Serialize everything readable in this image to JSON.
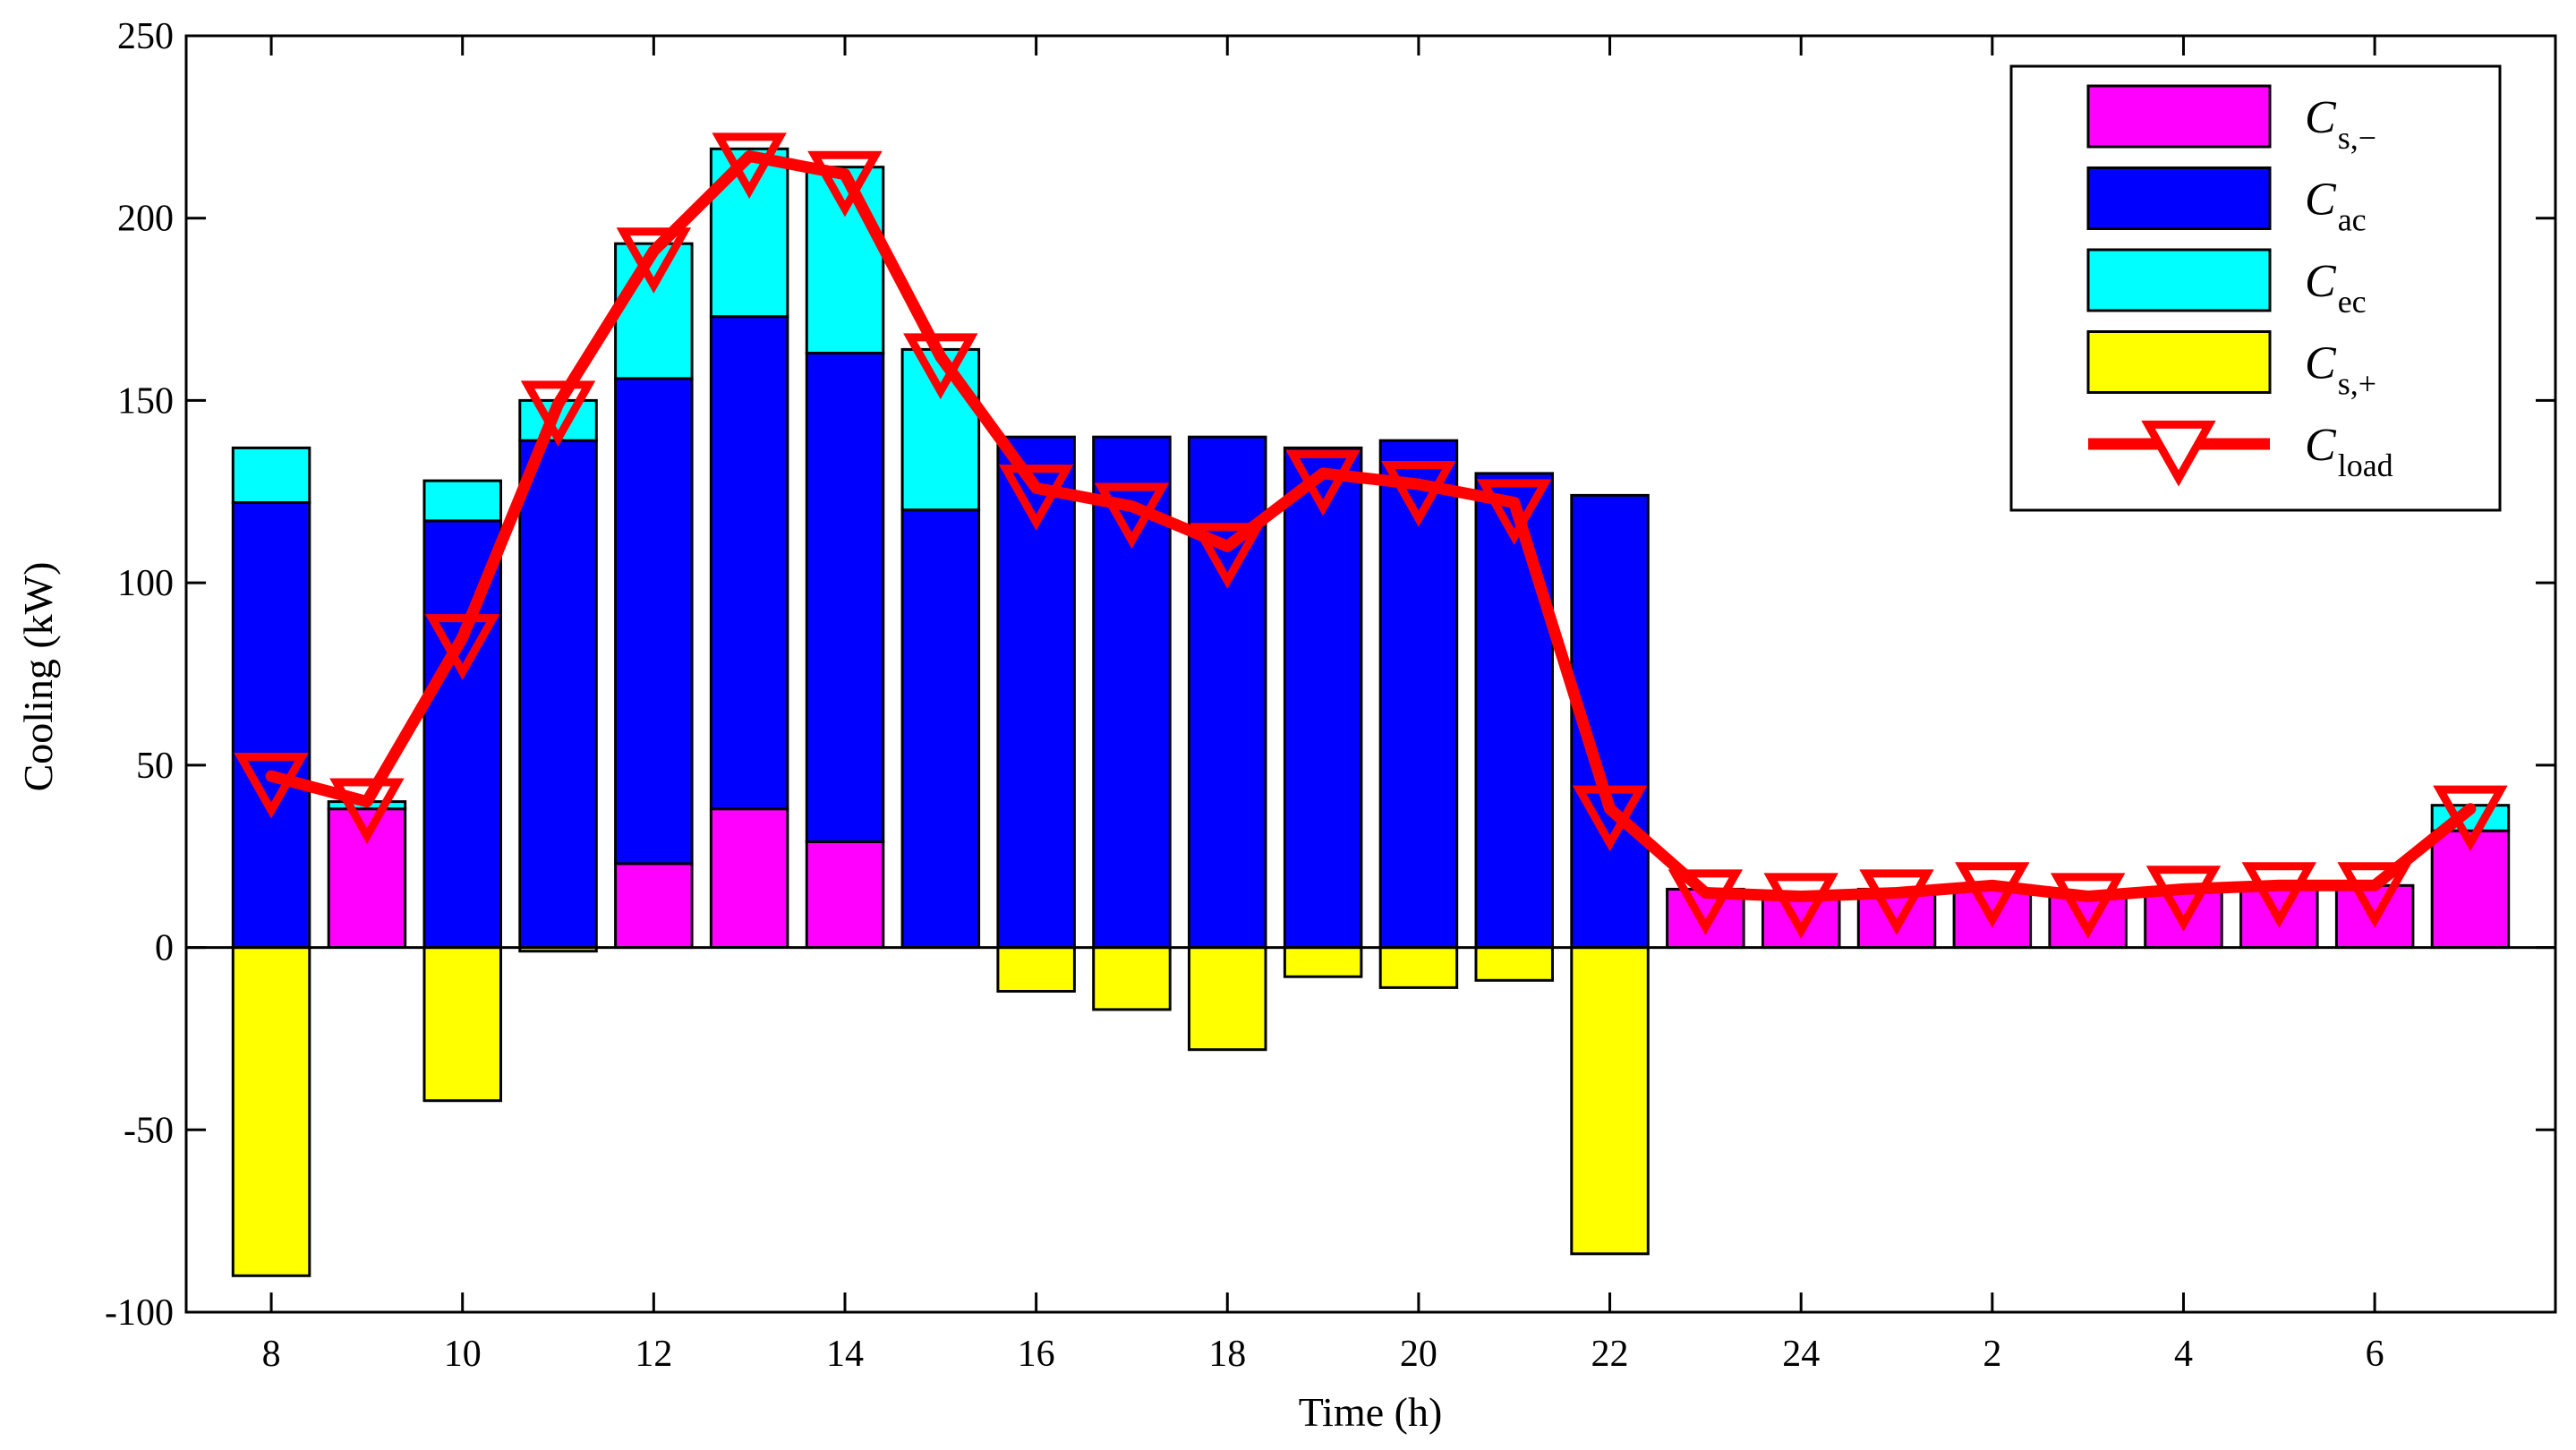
{
  "chart_data": {
    "type": "bar",
    "stacked": true,
    "title": "",
    "xlabel": "Time (h)",
    "ylabel": "Cooling (kW)",
    "ylim": [
      -100,
      250
    ],
    "yticks": [
      -100,
      -50,
      0,
      50,
      100,
      150,
      200,
      250
    ],
    "ytick_labels": [
      "-100",
      "-50",
      "0",
      "50",
      "100",
      "150",
      "200",
      "250"
    ],
    "categories": [
      "8",
      "9",
      "10",
      "11",
      "12",
      "13",
      "14",
      "15",
      "16",
      "17",
      "18",
      "19",
      "20",
      "21",
      "22",
      "23",
      "24",
      "1",
      "2",
      "3",
      "4",
      "5",
      "6",
      "7"
    ],
    "xtick_labels": [
      {
        "index": 0,
        "label": "8"
      },
      {
        "index": 2,
        "label": "10"
      },
      {
        "index": 4,
        "label": "12"
      },
      {
        "index": 6,
        "label": "14"
      },
      {
        "index": 8,
        "label": "16"
      },
      {
        "index": 10,
        "label": "18"
      },
      {
        "index": 12,
        "label": "20"
      },
      {
        "index": 14,
        "label": "22"
      },
      {
        "index": 16,
        "label": "24"
      },
      {
        "index": 18,
        "label": "2"
      },
      {
        "index": 20,
        "label": "4"
      },
      {
        "index": 22,
        "label": "6"
      }
    ],
    "series": [
      {
        "name": "s,−",
        "legend_main": "C",
        "legend_sub": "s,−",
        "kind": "bar",
        "color": "#ff00ff",
        "values": [
          0,
          38,
          0,
          0,
          23,
          38,
          29,
          0,
          0,
          0,
          0,
          0,
          0,
          0,
          0,
          16,
          15,
          16,
          17,
          15,
          16,
          17,
          17,
          32
        ]
      },
      {
        "name": "ac",
        "legend_main": "C",
        "legend_sub": "ac",
        "kind": "bar",
        "color": "#0000ff",
        "values": [
          122,
          0,
          117,
          139,
          133,
          135,
          134,
          120,
          140,
          140,
          140,
          137,
          139,
          130,
          124,
          0,
          0,
          0,
          0,
          0,
          0,
          0,
          0,
          0
        ]
      },
      {
        "name": "ec",
        "legend_main": "C",
        "legend_sub": "ec",
        "kind": "bar",
        "color": "#00ffff",
        "values": [
          15,
          2,
          11,
          11,
          37,
          46,
          51,
          44,
          0,
          0,
          0,
          0,
          0,
          0,
          0,
          0,
          0,
          0,
          0,
          0,
          0,
          0,
          0,
          7
        ]
      },
      {
        "name": "s,+",
        "legend_main": "C",
        "legend_sub": "s,+",
        "kind": "bar",
        "color": "#ffff00",
        "values": [
          -90,
          0,
          -42,
          -1,
          0,
          0,
          0,
          0,
          -12,
          -17,
          -28,
          -8,
          -11,
          -9,
          -84,
          0,
          0,
          0,
          0,
          0,
          0,
          0,
          0,
          0
        ]
      },
      {
        "name": "load",
        "legend_main": "C",
        "legend_sub": "load",
        "kind": "line",
        "color": "#ff0000",
        "marker": "triangle-down",
        "values": [
          47,
          40,
          85,
          149,
          191,
          217,
          212,
          162,
          126,
          121,
          110,
          130,
          127,
          122,
          38,
          15,
          14,
          15,
          17,
          14,
          16,
          17,
          17,
          38
        ]
      }
    ],
    "legend": {
      "position": "top-right"
    },
    "grid": false
  }
}
